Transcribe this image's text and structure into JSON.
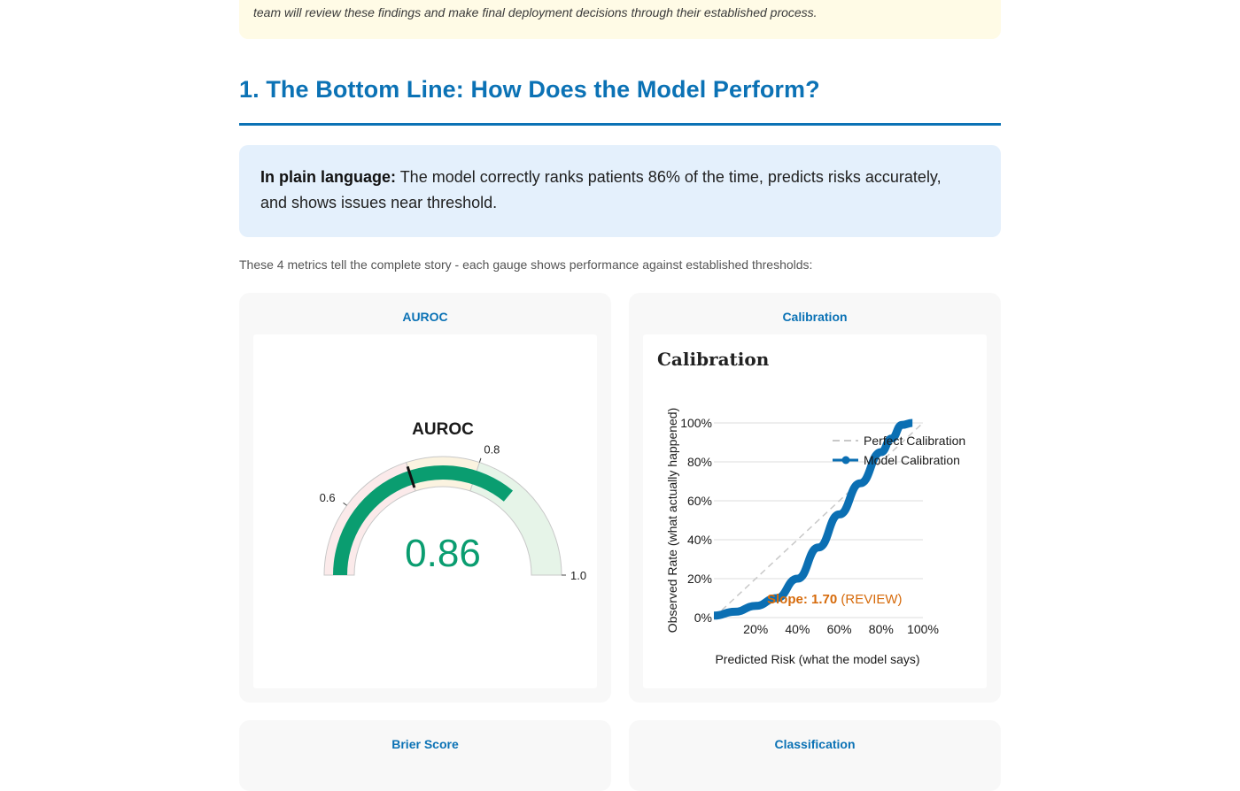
{
  "notice": {
    "text": "team will review these findings and make final deployment decisions through their established process."
  },
  "section": {
    "title": "1. The Bottom Line: How Does the Model Perform?"
  },
  "plain_language": {
    "label": "In plain language:",
    "text": " The model correctly ranks patients 86% of the time, predicts risks accurately, and shows issues near threshold."
  },
  "intro": "These 4 metrics tell the complete story - each gauge shows performance against established thresholds:",
  "cards": [
    {
      "title": "AUROC"
    },
    {
      "title": "Calibration"
    },
    {
      "title": "Brier Score"
    },
    {
      "title": "Classification"
    }
  ],
  "gauge": {
    "title": "AUROC",
    "value": 0.86,
    "value_text": "0.86",
    "min": 0.5,
    "max": 1.0,
    "threshold": 0.7,
    "ticks": [
      {
        "value": 0.6,
        "label": "0.6"
      },
      {
        "value": 0.8,
        "label": "0.8"
      },
      {
        "value": 1.0,
        "label": "1.0"
      }
    ],
    "colors": {
      "bar": "#0a9d70",
      "band_low": "#fbeaea",
      "band_mid": "#fbf3e0",
      "band_high": "#e6f4e8",
      "value": "#0a9d70"
    }
  },
  "chart_data": {
    "type": "line",
    "title": "Calibration",
    "xlabel": "Predicted Risk (what the model says)",
    "ylabel": "Observed Rate (what actually happened)",
    "xlim": [
      0,
      1
    ],
    "ylim": [
      0,
      1
    ],
    "x_ticks": [
      "20%",
      "40%",
      "60%",
      "80%",
      "100%"
    ],
    "y_ticks": [
      "0%",
      "20%",
      "40%",
      "60%",
      "80%",
      "100%"
    ],
    "grid": true,
    "legend_position": "top-right",
    "series": [
      {
        "name": "Perfect Calibration",
        "style": "dashed",
        "color": "#c8c8c8",
        "x": [
          0,
          1
        ],
        "y": [
          0,
          1
        ]
      },
      {
        "name": "Model Calibration",
        "style": "solid",
        "color": "#0b6fb3",
        "x": [
          0,
          0.1,
          0.2,
          0.3,
          0.4,
          0.5,
          0.6,
          0.7,
          0.8,
          0.85,
          0.9,
          0.95
        ],
        "y": [
          0.01,
          0.03,
          0.06,
          0.1,
          0.2,
          0.36,
          0.53,
          0.69,
          0.85,
          0.92,
          0.99,
          1.0
        ]
      }
    ],
    "annotation": {
      "label": "Slope: 1.70",
      "status": " (REVIEW)",
      "color": "#d66a0a"
    }
  }
}
